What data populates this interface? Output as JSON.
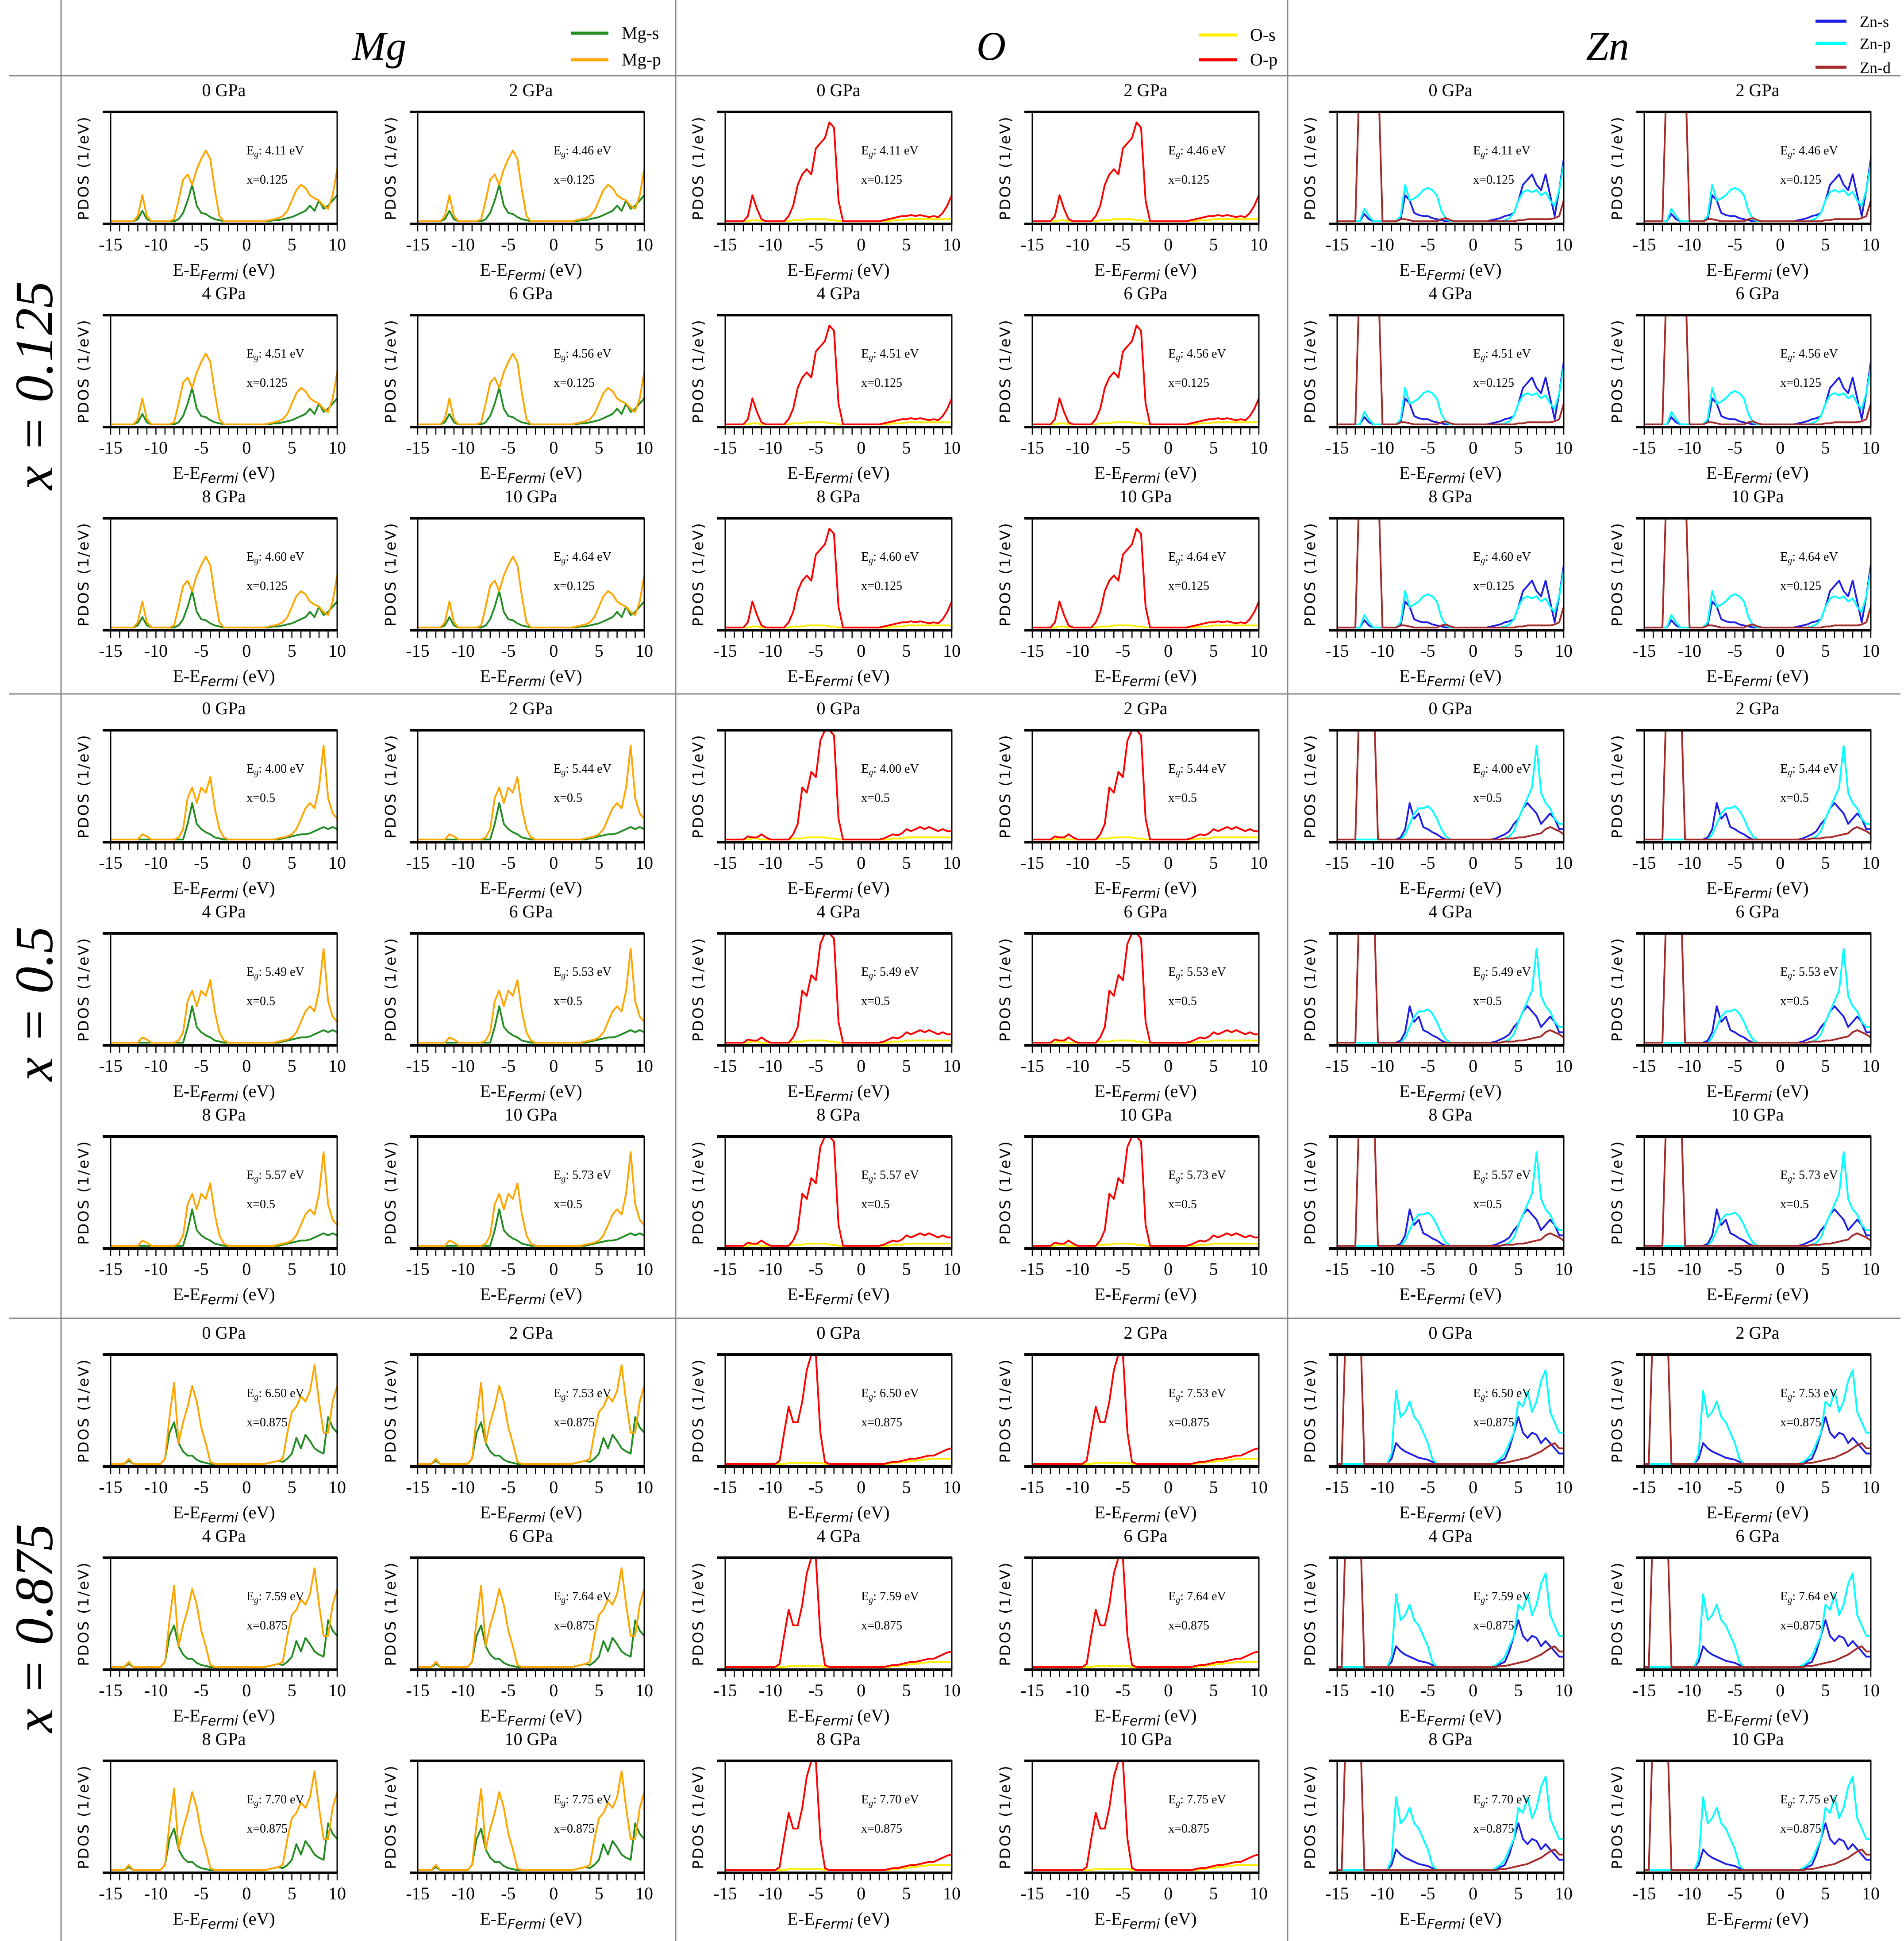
{
  "columns": [
    {
      "title": "Mg",
      "legend": [
        {
          "label": "Mg-s",
          "color": "#228B22"
        },
        {
          "label": "Mg-p",
          "color": "#FFA500"
        }
      ]
    },
    {
      "title": "O",
      "legend": [
        {
          "label": "O-s",
          "color": "#FFEE00"
        },
        {
          "label": "O-p",
          "color": "#FF0000"
        }
      ]
    },
    {
      "title": "Zn",
      "legend": [
        {
          "label": "Zn-s",
          "color": "#1E1EE6"
        },
        {
          "label": "Zn-p",
          "color": "#00FFFF"
        },
        {
          "label": "Zn-d",
          "color": "#A52A2A"
        }
      ]
    }
  ],
  "rows": [
    {
      "label": "x = 0.125",
      "annotation": "x=0.125",
      "gaps": [
        "4.11 eV",
        "4.46 eV",
        "4.51 eV",
        "4.56 eV",
        "4.60 eV",
        "4.64 eV"
      ]
    },
    {
      "label": "x = 0.5",
      "annotation": "x=0.5",
      "gaps": [
        "4.00 eV",
        "5.44 eV",
        "5.49 eV",
        "5.53 eV",
        "5.57 eV",
        "5.73 eV"
      ]
    },
    {
      "label": "x = 0.875",
      "annotation": "x=0.875",
      "gaps": [
        "6.50 eV",
        "7.53 eV",
        "7.59 eV",
        "7.64 eV",
        "7.70 eV",
        "7.75 eV"
      ]
    }
  ],
  "pressures": [
    "0 GPa",
    "2 GPa",
    "4 GPa",
    "6 GPa",
    "8 GPa",
    "10 GPa"
  ],
  "labels": {
    "ylabel": "PDOS (1/eV)",
    "xlabel_main": "E-E",
    "xlabel_sub": "Fermi",
    "xlabel_unit": " (eV)",
    "gap_main": "E",
    "gap_sub": "g",
    "gap_sep": ": "
  },
  "chart_data": {
    "type": "line",
    "xlabel": "E-E_Fermi (eV)",
    "ylabel": "PDOS (1/eV)",
    "xlim": [
      -15,
      10
    ],
    "xticks": [
      -15,
      -10,
      -5,
      0,
      5,
      10
    ],
    "ylim": [
      0,
      1.05
    ],
    "y_ticks_shown": false,
    "grid": false,
    "note_values": "PDOS read approximately off the plots, relative units; one curve per composition and element, used for every pressure panel",
    "energies": [
      -15,
      -14.5,
      -14,
      -13.5,
      -13,
      -12.5,
      -12,
      -11.5,
      -11,
      -10.5,
      -10,
      -9.5,
      -9,
      -8.5,
      -8,
      -7.5,
      -7,
      -6.5,
      -6,
      -5.5,
      -5,
      -4.5,
      -4,
      -3.5,
      -3,
      -2.5,
      -2,
      -1.5,
      -1,
      -0.5,
      0,
      0.5,
      1,
      1.5,
      2,
      2.5,
      3,
      3.5,
      4,
      4.5,
      5,
      5.5,
      6,
      6.5,
      7,
      7.5,
      8,
      8.5,
      9,
      9.5,
      10
    ],
    "curves": [
      {
        "Mg-s": [
          0,
          0,
          0,
          0,
          0,
          0,
          0.02,
          0.1,
          0.02,
          0,
          0,
          0,
          0,
          0,
          0,
          0.02,
          0.08,
          0.2,
          0.35,
          0.15,
          0.08,
          0.07,
          0.04,
          0.02,
          0.01,
          0,
          0,
          0,
          0,
          0,
          0,
          0,
          0,
          0,
          0,
          0,
          0.01,
          0.01,
          0.02,
          0.03,
          0.04,
          0.06,
          0.08,
          0.1,
          0.15,
          0.1,
          0.2,
          0.12,
          0.15,
          0.2,
          0.25
        ],
        "Mg-p": [
          0,
          0,
          0,
          0,
          0,
          0,
          0.05,
          0.25,
          0.05,
          0,
          0,
          0,
          0,
          0,
          0.02,
          0.2,
          0.4,
          0.45,
          0.35,
          0.5,
          0.6,
          0.68,
          0.6,
          0.3,
          0.05,
          0,
          0,
          0,
          0,
          0,
          0,
          0,
          0,
          0,
          0,
          0.01,
          0.02,
          0.03,
          0.05,
          0.1,
          0.2,
          0.3,
          0.35,
          0.32,
          0.25,
          0.22,
          0.2,
          0.15,
          0.12,
          0.25,
          0.5
        ],
        "O-s": [
          0,
          0,
          0,
          0,
          0,
          0,
          0.01,
          0.01,
          0,
          0,
          0,
          0,
          0,
          0,
          0,
          0.01,
          0.01,
          0.01,
          0.02,
          0.02,
          0.02,
          0.02,
          0.02,
          0.01,
          0.01,
          0,
          0,
          0,
          0,
          0,
          0,
          0,
          0,
          0,
          0,
          0,
          0,
          0.01,
          0.01,
          0.01,
          0.02,
          0.02,
          0.02,
          0.02,
          0.02,
          0.02,
          0.02,
          0.02,
          0.02,
          0.02,
          0.02
        ],
        "O-p": [
          0,
          0,
          0,
          0,
          0,
          0.05,
          0.25,
          0.12,
          0.02,
          0,
          0,
          0,
          0,
          0,
          0.05,
          0.15,
          0.35,
          0.45,
          0.5,
          0.45,
          0.7,
          0.75,
          0.8,
          0.95,
          0.9,
          0.2,
          0,
          0,
          0,
          0,
          0,
          0,
          0,
          0,
          0,
          0.01,
          0.02,
          0.03,
          0.04,
          0.05,
          0.05,
          0.06,
          0.05,
          0.06,
          0.05,
          0.04,
          0.05,
          0.04,
          0.08,
          0.15,
          0.25
        ],
        "Zn-s": [
          0,
          0,
          0,
          0,
          0,
          0,
          0.07,
          0.02,
          0,
          0,
          0,
          0,
          0,
          0,
          0.02,
          0.25,
          0.2,
          0.08,
          0.06,
          0.05,
          0.05,
          0.03,
          0.02,
          0.01,
          0,
          0,
          0,
          0,
          0,
          0,
          0,
          0,
          0,
          0,
          0.01,
          0.02,
          0.03,
          0.05,
          0.06,
          0.08,
          0.2,
          0.35,
          0.4,
          0.45,
          0.35,
          0.3,
          0.45,
          0.25,
          0.05,
          0.3,
          0.6
        ],
        "Zn-p": [
          0,
          0,
          0,
          0,
          0,
          0,
          0.12,
          0.05,
          0,
          0,
          0,
          0,
          0,
          0,
          0.05,
          0.35,
          0.2,
          0.22,
          0.25,
          0.3,
          0.32,
          0.3,
          0.25,
          0.1,
          0.02,
          0,
          0,
          0,
          0,
          0,
          0,
          0,
          0,
          0,
          0,
          0,
          0,
          0.01,
          0.03,
          0.08,
          0.2,
          0.28,
          0.3,
          0.28,
          0.3,
          0.25,
          0.28,
          0.2,
          0.15,
          0.3,
          0.55
        ],
        "Zn-d": [
          0,
          0,
          0,
          0,
          0,
          1.5,
          1.5,
          1.5,
          1.5,
          1.5,
          0,
          0,
          0,
          0,
          0.02,
          0.02,
          0.01,
          0,
          0,
          0,
          0,
          0,
          0,
          0.02,
          0.03,
          0.01,
          0,
          0,
          0,
          0,
          0,
          0,
          0,
          0,
          0,
          0,
          0,
          0,
          0,
          0,
          0.01,
          0.01,
          0.02,
          0.02,
          0.02,
          0.02,
          0.02,
          0.02,
          0.03,
          0.05,
          0.2
        ]
      },
      {
        "Mg-s": [
          0,
          0,
          0,
          0,
          0,
          0,
          0,
          0,
          0,
          0,
          0,
          0,
          0,
          0,
          0,
          0,
          0,
          0.15,
          0.35,
          0.15,
          0.1,
          0.07,
          0.05,
          0.02,
          0.01,
          0,
          0,
          0,
          0,
          0,
          0,
          0,
          0,
          0,
          0,
          0,
          0,
          0,
          0.01,
          0.02,
          0.03,
          0.04,
          0.05,
          0.05,
          0.06,
          0.08,
          0.1,
          0.12,
          0.1,
          0.12,
          0.1
        ],
        "Mg-p": [
          0,
          0,
          0,
          0,
          0,
          0,
          0,
          0.05,
          0.03,
          0,
          0,
          0,
          0,
          0,
          0,
          0.02,
          0.1,
          0.4,
          0.5,
          0.35,
          0.5,
          0.45,
          0.6,
          0.3,
          0.1,
          0.02,
          0,
          0,
          0,
          0,
          0,
          0,
          0,
          0,
          0,
          0,
          0,
          0.01,
          0.02,
          0.03,
          0.05,
          0.1,
          0.2,
          0.3,
          0.35,
          0.3,
          0.5,
          0.9,
          0.4,
          0.25,
          0.2
        ],
        "O-s": [
          0,
          0,
          0,
          0,
          0,
          0,
          0.01,
          0.01,
          0,
          0,
          0,
          0,
          0,
          0,
          0,
          0.01,
          0.01,
          0.01,
          0.02,
          0.02,
          0.02,
          0.02,
          0.02,
          0.01,
          0.01,
          0,
          0,
          0,
          0,
          0,
          0,
          0,
          0,
          0,
          0,
          0,
          0,
          0.01,
          0.01,
          0.01,
          0.02,
          0.02,
          0.02,
          0.02,
          0.02,
          0.02,
          0.02,
          0.02,
          0.02,
          0.02,
          0.02
        ],
        "O-p": [
          0,
          0,
          0,
          0,
          0,
          0.03,
          0.02,
          0.02,
          0.05,
          0.02,
          0,
          0,
          0,
          0,
          0,
          0.05,
          0.15,
          0.5,
          0.45,
          0.65,
          0.6,
          0.95,
          1.05,
          1.05,
          1.0,
          0.2,
          0,
          0,
          0,
          0,
          0,
          0,
          0,
          0,
          0,
          0.01,
          0.03,
          0.05,
          0.04,
          0.06,
          0.1,
          0.08,
          0.1,
          0.12,
          0.1,
          0.12,
          0.1,
          0.08,
          0.1,
          0.08,
          0.08
        ],
        "Zn-s": [
          0,
          0,
          0,
          0,
          0,
          0,
          0,
          0,
          0,
          0,
          0,
          0,
          0,
          0,
          0.02,
          0.1,
          0.35,
          0.2,
          0.25,
          0.12,
          0.1,
          0.07,
          0.05,
          0.02,
          0,
          0,
          0,
          0,
          0,
          0,
          0,
          0,
          0,
          0,
          0,
          0.01,
          0.03,
          0.05,
          0.08,
          0.15,
          0.2,
          0.3,
          0.35,
          0.3,
          0.25,
          0.15,
          0.2,
          0.25,
          0.2,
          0.1,
          0.1
        ],
        "Zn-p": [
          0,
          0,
          0,
          0,
          0,
          0,
          0,
          0,
          0,
          0,
          0,
          0,
          0,
          0,
          0,
          0.05,
          0.15,
          0.25,
          0.3,
          0.3,
          0.32,
          0.28,
          0.2,
          0.1,
          0.03,
          0,
          0,
          0,
          0,
          0,
          0,
          0,
          0,
          0,
          0,
          0,
          0,
          0.01,
          0.03,
          0.08,
          0.2,
          0.3,
          0.4,
          0.5,
          0.9,
          0.45,
          0.35,
          0.3,
          0.2,
          0.15,
          0.15
        ],
        "Zn-d": [
          0,
          0,
          0,
          0,
          0,
          1.5,
          1.5,
          1.5,
          1.5,
          0,
          0,
          0,
          0,
          0,
          0,
          0,
          0,
          0,
          0,
          0,
          0,
          0,
          0,
          0,
          0,
          0,
          0,
          0,
          0,
          0,
          0,
          0,
          0,
          0,
          0,
          0,
          0,
          0.01,
          0.01,
          0.01,
          0.02,
          0.02,
          0.03,
          0.04,
          0.05,
          0.06,
          0.1,
          0.12,
          0.1,
          0.08,
          0.05
        ]
      },
      {
        "Mg-s": [
          0,
          0,
          0,
          0,
          0.03,
          0,
          0,
          0,
          0,
          0,
          0,
          0,
          0.05,
          0.3,
          0.4,
          0.2,
          0.12,
          0.08,
          0.08,
          0.04,
          0.02,
          0.01,
          0,
          0,
          0,
          0,
          0,
          0,
          0,
          0,
          0,
          0,
          0,
          0,
          0,
          0.01,
          0.02,
          0.03,
          0.02,
          0.05,
          0.1,
          0.25,
          0.15,
          0.28,
          0.22,
          0.15,
          0.12,
          0.1,
          0.45,
          0.35,
          0.3
        ],
        "Mg-p": [
          0,
          0,
          0,
          0,
          0.05,
          0,
          0,
          0,
          0,
          0,
          0,
          0,
          0.05,
          0.45,
          0.78,
          0.2,
          0.4,
          0.55,
          0.75,
          0.6,
          0.35,
          0.2,
          0.02,
          0,
          0,
          0,
          0,
          0,
          0,
          0,
          0,
          0,
          0,
          0,
          0,
          0.01,
          0.02,
          0.03,
          0.05,
          0.3,
          0.5,
          0.55,
          0.65,
          0.6,
          0.7,
          0.95,
          0.6,
          0.3,
          0.3,
          0.6,
          0.75
        ],
        "O-s": [
          0,
          0,
          0,
          0,
          0,
          0,
          0,
          0,
          0,
          0,
          0,
          0,
          0,
          0,
          0.01,
          0.01,
          0.01,
          0.01,
          0.01,
          0.01,
          0.01,
          0.01,
          0,
          0,
          0,
          0,
          0,
          0,
          0,
          0,
          0,
          0,
          0,
          0,
          0,
          0,
          0,
          0.01,
          0.01,
          0.02,
          0.02,
          0.03,
          0.03,
          0.04,
          0.04,
          0.05,
          0.05,
          0.05,
          0.05,
          0.05,
          0.05
        ],
        "O-p": [
          0,
          0,
          0,
          0,
          0,
          0,
          0,
          0,
          0,
          0,
          0,
          0,
          0.03,
          0.3,
          0.55,
          0.4,
          0.4,
          0.6,
          0.9,
          1.05,
          1.05,
          0.3,
          0.02,
          0,
          0,
          0,
          0,
          0,
          0,
          0,
          0,
          0,
          0,
          0,
          0,
          0,
          0.01,
          0.02,
          0.02,
          0.03,
          0.04,
          0.05,
          0.05,
          0.06,
          0.07,
          0.08,
          0.08,
          0.1,
          0.12,
          0.14,
          0.15
        ],
        "Zn-s": [
          0,
          0,
          0,
          0,
          0,
          0,
          0,
          0,
          0,
          0,
          0,
          0,
          0.05,
          0.2,
          0.15,
          0.12,
          0.1,
          0.08,
          0.06,
          0.05,
          0.04,
          0.02,
          0,
          0,
          0,
          0,
          0,
          0,
          0,
          0,
          0,
          0,
          0,
          0,
          0,
          0.01,
          0.03,
          0.05,
          0.15,
          0.3,
          0.45,
          0.3,
          0.25,
          0.3,
          0.28,
          0.2,
          0.25,
          0.2,
          0.15,
          0.1,
          0.1
        ],
        "Zn-p": [
          0,
          0,
          0,
          0,
          0,
          0,
          0,
          0,
          0,
          0,
          0,
          0,
          0.1,
          0.7,
          0.45,
          0.5,
          0.6,
          0.45,
          0.4,
          0.3,
          0.2,
          0.05,
          0,
          0,
          0,
          0,
          0,
          0,
          0,
          0,
          0,
          0,
          0,
          0,
          0,
          0.02,
          0.05,
          0.1,
          0.2,
          0.3,
          0.6,
          0.55,
          0.7,
          0.5,
          0.6,
          0.8,
          0.9,
          0.5,
          0.4,
          0.3,
          0.3
        ],
        "Zn-d": [
          0,
          0,
          1.5,
          1.5,
          1.5,
          1.5,
          0,
          0,
          0,
          0,
          0,
          0,
          0,
          0,
          0,
          0,
          0,
          0,
          0,
          0,
          0,
          0,
          0,
          0,
          0,
          0,
          0,
          0,
          0,
          0,
          0,
          0,
          0,
          0,
          0,
          0,
          0.01,
          0.01,
          0.02,
          0.03,
          0.04,
          0.05,
          0.06,
          0.08,
          0.1,
          0.12,
          0.15,
          0.18,
          0.2,
          0.15,
          0.15
        ]
      }
    ]
  }
}
